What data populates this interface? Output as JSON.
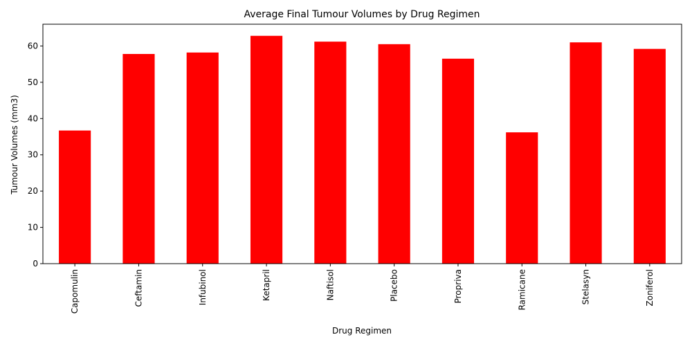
{
  "chart_data": {
    "type": "bar",
    "title": "Average Final Tumour Volumes by Drug Regimen",
    "xlabel": "Drug Regimen",
    "ylabel": "Tumour Volumes (mm3)",
    "categories": [
      "Capomulin",
      "Ceftamin",
      "Infubinol",
      "Ketapril",
      "Naftisol",
      "Placebo",
      "Propriva",
      "Ramicane",
      "Stelasyn",
      "Zoniferol"
    ],
    "values": [
      36.7,
      57.8,
      58.2,
      62.8,
      61.2,
      60.5,
      56.5,
      36.2,
      61.0,
      59.2
    ],
    "ylim": [
      0,
      66
    ],
    "yticks": [
      0,
      10,
      20,
      30,
      40,
      50,
      60
    ],
    "bar_color": "#ff0000",
    "grid": false,
    "legend": "none"
  }
}
